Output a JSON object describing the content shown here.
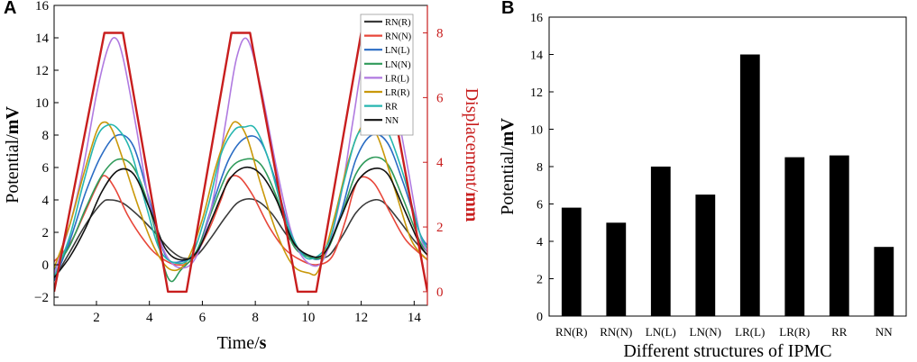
{
  "panel_labels": {
    "a": "A",
    "b": "B"
  },
  "chart_data": [
    {
      "type": "line",
      "title": "",
      "xlabel_prefix": "Time/",
      "xlabel_unit": "s",
      "ylabel_prefix": "Potential/",
      "ylabel_unit": "mV",
      "y2label_prefix": "Displacement/",
      "y2label_unit": "mm",
      "xlim": [
        0.4,
        14.5
      ],
      "ylim": [
        -2.5,
        16
      ],
      "y2lim": [
        -0.42,
        8.85
      ],
      "x_ticks": [
        2,
        4,
        6,
        8,
        10,
        12,
        14
      ],
      "y_ticks": [
        -2,
        0,
        2,
        4,
        6,
        8,
        10,
        12,
        14,
        16
      ],
      "y2_ticks": [
        0,
        2,
        4,
        6,
        8
      ],
      "legend_position": "top-right",
      "series": [
        {
          "name": "RN(R)",
          "color": "#3a3a3a",
          "x": [
            0.4,
            1.0,
            1.6,
            2.2,
            2.5,
            3.0,
            3.6,
            4.2,
            4.8,
            5.3,
            5.8,
            6.3,
            6.9,
            7.4,
            8.0,
            8.6,
            9.2,
            9.8,
            10.3,
            10.8,
            11.3,
            11.8,
            12.3,
            12.8,
            13.4,
            14.0,
            14.5
          ],
          "y": [
            -0.9,
            0.8,
            2.5,
            3.8,
            4.0,
            3.8,
            3.0,
            2.0,
            0.9,
            0.4,
            0.6,
            1.6,
            3.0,
            3.9,
            4.0,
            3.2,
            1.8,
            0.7,
            0.4,
            0.6,
            1.8,
            3.2,
            3.9,
            3.9,
            2.8,
            1.5,
            0.6
          ]
        },
        {
          "name": "RN(N)",
          "color": "#e8473a",
          "x": [
            0.4,
            1.0,
            1.5,
            2.0,
            2.3,
            2.7,
            3.2,
            3.8,
            4.3,
            5.0,
            5.6,
            6.2,
            6.7,
            7.0,
            7.4,
            7.9,
            8.5,
            9.1,
            9.7,
            10.3,
            10.9,
            11.4,
            11.7,
            12.0,
            12.5,
            13.1,
            13.7,
            14.5
          ],
          "y": [
            0.2,
            1.3,
            3.0,
            4.8,
            5.5,
            4.7,
            3.0,
            1.5,
            0.6,
            0.0,
            0.3,
            2.0,
            4.0,
            5.3,
            5.4,
            4.3,
            2.4,
            1.0,
            0.3,
            0.0,
            0.5,
            2.7,
            4.5,
            5.4,
            5.0,
            3.2,
            1.5,
            0.3
          ]
        },
        {
          "name": "LN(L)",
          "color": "#2a6cc4",
          "x": [
            0.4,
            1.0,
            1.6,
            2.2,
            2.8,
            3.4,
            4.0,
            4.6,
            5.2,
            5.8,
            6.4,
            7.0,
            7.6,
            8.2,
            8.8,
            9.4,
            10.0,
            10.6,
            11.2,
            11.8,
            12.4,
            13.0,
            13.6,
            14.2,
            14.5
          ],
          "y": [
            -1.0,
            1.5,
            4.5,
            6.8,
            8.0,
            7.3,
            4.0,
            0.6,
            0.2,
            0.9,
            3.8,
            6.5,
            7.8,
            7.6,
            5.0,
            1.6,
            0.5,
            0.6,
            3.0,
            6.5,
            8.0,
            7.5,
            5.0,
            2.0,
            1.2
          ]
        },
        {
          "name": "LN(N)",
          "color": "#2f9a5a",
          "x": [
            0.4,
            1.0,
            1.6,
            2.2,
            2.8,
            3.4,
            4.0,
            4.7,
            5.2,
            5.8,
            6.4,
            7.0,
            7.6,
            8.2,
            8.8,
            9.4,
            10.0,
            10.6,
            11.2,
            11.8,
            12.4,
            13.0,
            13.6,
            14.2,
            14.5
          ],
          "y": [
            -0.3,
            1.2,
            3.5,
            5.5,
            6.5,
            6.0,
            3.5,
            -0.8,
            -0.3,
            0.9,
            3.5,
            5.8,
            6.5,
            6.2,
            4.2,
            1.3,
            0.5,
            0.6,
            2.8,
            5.6,
            6.6,
            6.2,
            4.0,
            1.5,
            0.8
          ]
        },
        {
          "name": "LR(L)",
          "color": "#b07ae0",
          "x": [
            0.4,
            1.0,
            1.5,
            2.0,
            2.4,
            2.7,
            3.0,
            3.5,
            4.0,
            4.6,
            5.2,
            5.8,
            6.4,
            6.9,
            7.3,
            7.7,
            8.2,
            8.8,
            9.4,
            10.0,
            10.6,
            11.2,
            11.7,
            12.1,
            12.6,
            13.1,
            13.7,
            14.2,
            14.5
          ],
          "y": [
            -0.6,
            2.5,
            6.0,
            10.5,
            13.2,
            14.0,
            12.8,
            8.5,
            3.8,
            0.7,
            -0.2,
            0.6,
            4.0,
            9.0,
            12.8,
            13.9,
            11.0,
            6.0,
            1.8,
            0.1,
            0.4,
            4.0,
            9.0,
            12.8,
            13.8,
            11.5,
            6.5,
            2.0,
            0.8
          ]
        },
        {
          "name": "LR(R)",
          "color": "#c9980a",
          "x": [
            0.4,
            1.0,
            1.5,
            2.0,
            2.3,
            2.6,
            3.0,
            3.6,
            4.2,
            4.8,
            5.4,
            6.0,
            6.5,
            7.0,
            7.3,
            7.7,
            8.2,
            8.8,
            9.4,
            10.0,
            10.4,
            11.0,
            11.5,
            12.0,
            12.3,
            12.7,
            13.3,
            13.9,
            14.5
          ],
          "y": [
            -0.2,
            2.5,
            5.5,
            8.2,
            8.8,
            8.3,
            6.5,
            3.5,
            1.0,
            -0.3,
            0.2,
            2.8,
            6.0,
            8.3,
            8.8,
            7.8,
            5.0,
            2.0,
            0.0,
            -0.5,
            -0.3,
            3.0,
            6.3,
            8.5,
            8.7,
            7.6,
            4.5,
            1.5,
            0.3
          ]
        },
        {
          "name": "RR",
          "color": "#26b6b0",
          "x": [
            0.4,
            1.0,
            1.5,
            2.0,
            2.4,
            2.8,
            3.3,
            3.9,
            4.4,
            5.0,
            5.6,
            6.2,
            6.7,
            7.2,
            7.6,
            8.0,
            8.5,
            9.1,
            9.7,
            10.2,
            10.8,
            11.3,
            11.8,
            12.2,
            12.6,
            13.0,
            13.6,
            14.2,
            14.5
          ],
          "y": [
            -0.8,
            1.8,
            5.0,
            7.8,
            8.6,
            8.4,
            7.0,
            3.5,
            0.9,
            0.1,
            0.6,
            3.5,
            6.8,
            8.3,
            8.5,
            8.4,
            6.5,
            3.0,
            0.8,
            0.4,
            1.5,
            4.8,
            7.8,
            8.5,
            8.5,
            8.2,
            5.5,
            2.0,
            1.0
          ]
        },
        {
          "name": "NN",
          "color": "#111111",
          "x": [
            0.4,
            1.0,
            1.6,
            2.2,
            2.8,
            3.4,
            4.0,
            4.6,
            5.2,
            5.8,
            6.4,
            7.0,
            7.6,
            8.2,
            8.8,
            9.4,
            10.0,
            10.6,
            11.2,
            11.8,
            12.4,
            13.0,
            13.6,
            14.2,
            14.5
          ],
          "y": [
            -0.8,
            0.5,
            2.3,
            4.5,
            5.8,
            5.6,
            3.5,
            1.0,
            0.3,
            0.8,
            3.0,
            5.2,
            6.0,
            5.6,
            4.0,
            1.5,
            0.6,
            0.7,
            2.8,
            5.0,
            5.9,
            5.6,
            3.5,
            1.3,
            0.6
          ]
        },
        {
          "name": "Displacement",
          "axis": "right",
          "color": "#c81e1e",
          "show_in_legend": false,
          "x": [
            0.4,
            2.3,
            3.0,
            4.7,
            5.4,
            7.1,
            7.8,
            9.6,
            10.3,
            12.0,
            12.7,
            14.5
          ],
          "y": [
            0,
            8,
            8,
            0,
            0,
            8,
            8,
            0,
            0,
            8,
            8,
            0
          ]
        }
      ]
    },
    {
      "type": "bar",
      "title": "",
      "xlabel": "Different structures of IPMC",
      "ylabel_prefix": "Potential/",
      "ylabel_unit": "mV",
      "ylim": [
        0,
        16
      ],
      "y_ticks": [
        0,
        2,
        4,
        6,
        8,
        10,
        12,
        14,
        16
      ],
      "categories": [
        "RN(R)",
        "RN(N)",
        "LN(L)",
        "LN(N)",
        "LR(L)",
        "LR(R)",
        "RR",
        "NN"
      ],
      "values": [
        5.8,
        5.0,
        8.0,
        6.5,
        14.0,
        8.5,
        8.6,
        3.7
      ],
      "bar_color": "#000000"
    }
  ]
}
